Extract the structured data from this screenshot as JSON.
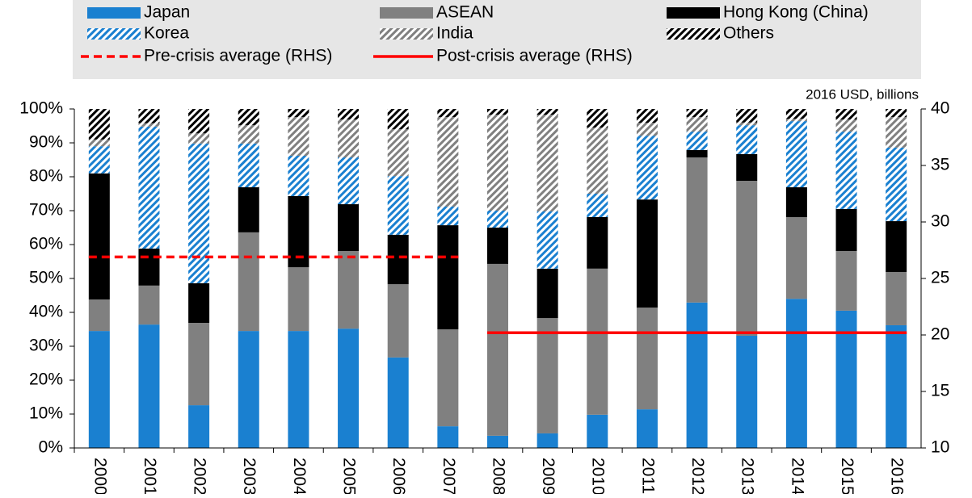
{
  "chart_data": {
    "type": "bar",
    "stacked": true,
    "note": "2016 USD, billions",
    "categories": [
      "2000",
      "2001",
      "2002",
      "2003",
      "2004",
      "2005",
      "2006",
      "2007",
      "2008",
      "2009",
      "2010",
      "2011",
      "2012",
      "2013",
      "2014",
      "2015",
      "2016"
    ],
    "series": [
      {
        "name": "Japan",
        "color": "#1a80d0",
        "hatch": false,
        "values": [
          34.5,
          36.4,
          12.6,
          34.5,
          34.5,
          35.2,
          26.7,
          6.4,
          3.6,
          4.3,
          9.8,
          11.4,
          42.9,
          33.1,
          44,
          40.5,
          36.2
        ]
      },
      {
        "name": "ASEAN",
        "color": "#808080",
        "hatch": false,
        "values": [
          9.3,
          11.5,
          24.3,
          29.1,
          18.8,
          22.9,
          21.6,
          28.6,
          50.7,
          34,
          43.1,
          30,
          42.8,
          45.7,
          24.1,
          17.6,
          15.7
        ]
      },
      {
        "name": "Hong Kong (China)",
        "color": "#000000",
        "hatch": false,
        "values": [
          37.2,
          10.9,
          11.7,
          13.3,
          21,
          13.8,
          14.6,
          30.7,
          10.7,
          14.6,
          15.2,
          31.9,
          2.2,
          7.9,
          8.8,
          12.4,
          15
        ]
      },
      {
        "name": "Korea",
        "color": "#1a80d0",
        "hatch": true,
        "values": [
          8,
          36,
          41.2,
          12.9,
          11.9,
          13.8,
          17.3,
          5.5,
          5,
          16.9,
          6.9,
          18.8,
          5.4,
          8.5,
          19.5,
          22.8,
          21.7
        ]
      },
      {
        "name": "India",
        "color": "#808080",
        "hatch": true,
        "values": [
          2,
          1,
          3,
          5.4,
          11.4,
          11.2,
          13.8,
          26.4,
          28.3,
          28.5,
          19.5,
          3.8,
          4.3,
          0.8,
          0.7,
          3.6,
          9
        ]
      },
      {
        "name": "Others",
        "color": "#000000",
        "hatch": true,
        "values": [
          9,
          4.2,
          7.2,
          4.8,
          2.4,
          3.1,
          6,
          2.4,
          1.7,
          1.7,
          5.5,
          4.1,
          2.4,
          4,
          2.9,
          3.1,
          2.4
        ]
      },
      {
        "name": "Pre-crisis average (RHS)",
        "type": "line",
        "axis": "y2",
        "color": "#ff0000",
        "dashed": true,
        "values": [
          26.9,
          26.9,
          26.9,
          26.9,
          26.9,
          26.9,
          26.9,
          26.9,
          null,
          null,
          null,
          null,
          null,
          null,
          null,
          null,
          null
        ]
      },
      {
        "name": "Post-crisis average (RHS)",
        "type": "line",
        "axis": "y2",
        "color": "#ff0000",
        "dashed": false,
        "values": [
          null,
          null,
          null,
          null,
          null,
          null,
          null,
          null,
          20.2,
          20.2,
          20.2,
          20.2,
          20.2,
          20.2,
          20.2,
          20.2,
          20.2
        ]
      }
    ],
    "ylim": [
      0,
      100
    ],
    "yticks": [
      {
        "value": 0,
        "label": "0%"
      },
      {
        "value": 10,
        "label": "10%"
      },
      {
        "value": 20,
        "label": "20%"
      },
      {
        "value": 30,
        "label": "30%"
      },
      {
        "value": 40,
        "label": "40%"
      },
      {
        "value": 50,
        "label": "50%"
      },
      {
        "value": 60,
        "label": "60%"
      },
      {
        "value": 70,
        "label": "70%"
      },
      {
        "value": 80,
        "label": "80%"
      },
      {
        "value": 90,
        "label": "90%"
      },
      {
        "value": 100,
        "label": "100%"
      }
    ],
    "y2lim": [
      10,
      40
    ],
    "y2ticks": [
      10,
      15,
      20,
      25,
      30,
      35,
      40
    ],
    "legend": "top"
  }
}
